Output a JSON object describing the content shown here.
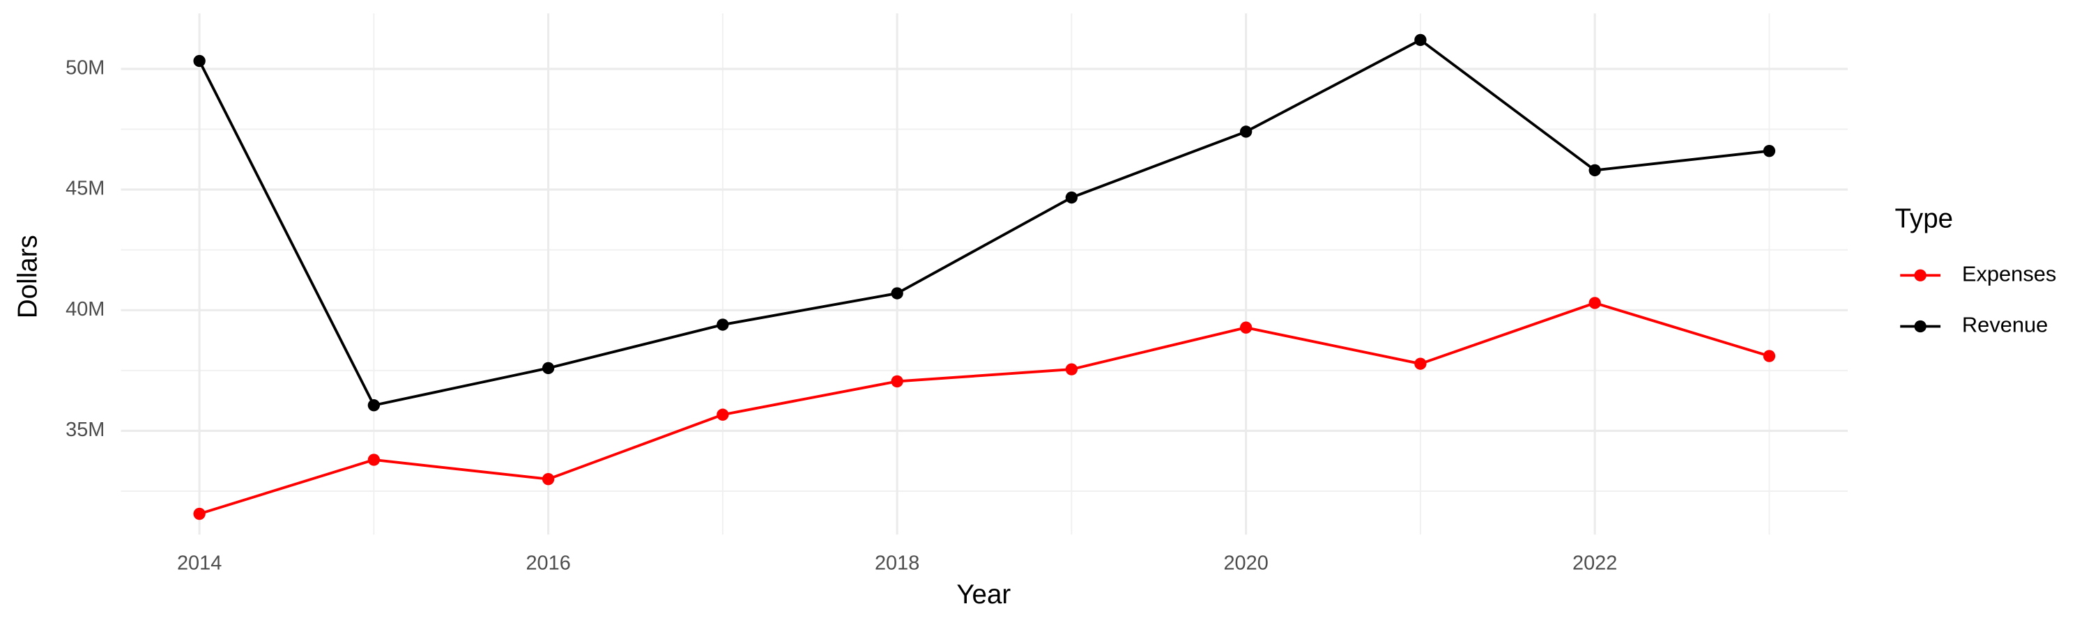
{
  "chart_data": {
    "type": "line",
    "x_label": "Year",
    "y_label": "Dollars",
    "legend_title": "Type",
    "legend_position": "right",
    "x": [
      2014,
      2015,
      2016,
      2017,
      2018,
      2019,
      2020,
      2021,
      2022,
      2023
    ],
    "series": [
      {
        "name": "Expenses",
        "color": "#ff0000",
        "values": [
          31560000,
          33800000,
          33000000,
          35670000,
          37050000,
          37550000,
          39280000,
          37780000,
          40300000,
          38100000
        ]
      },
      {
        "name": "Revenue",
        "color": "#000000",
        "values": [
          50330000,
          36060000,
          37600000,
          39400000,
          40700000,
          44670000,
          47400000,
          51200000,
          45800000,
          46600000
        ]
      }
    ],
    "xlim": [
      2013.55,
      2023.45
    ],
    "xticks": [
      2014,
      2016,
      2018,
      2020,
      2022
    ],
    "ylim": [
      30700000,
      52300000
    ],
    "yticks": [
      {
        "value": 35000000,
        "label": "35M"
      },
      {
        "value": 40000000,
        "label": "40M"
      },
      {
        "value": 45000000,
        "label": "45M"
      },
      {
        "value": 50000000,
        "label": "50M"
      }
    ],
    "grid": true
  }
}
